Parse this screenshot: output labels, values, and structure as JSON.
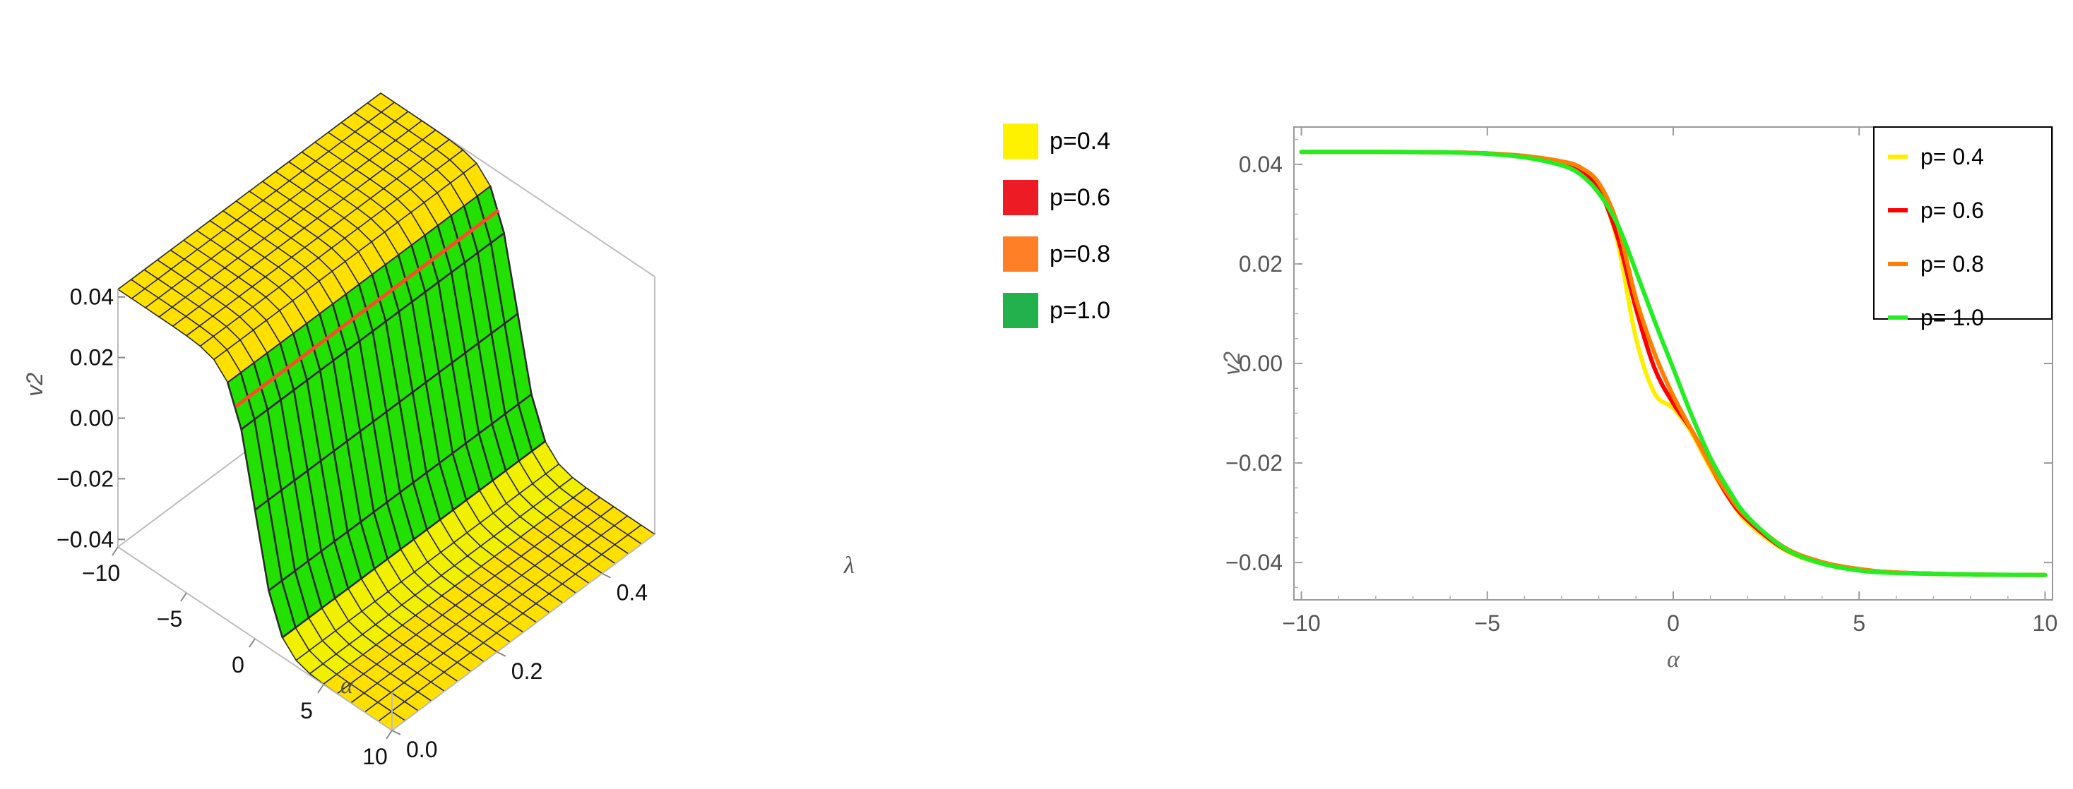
{
  "chart_data": [
    {
      "type": "surface3d",
      "zlabel": "v2",
      "xlabel": "α",
      "ylabel": "λ",
      "x_range": [
        -10,
        10
      ],
      "y_range": [
        0,
        0.5
      ],
      "z_range": [
        -0.0425,
        0.0425
      ],
      "z_ticks": [
        {
          "v": 0.04,
          "label": "0.04"
        },
        {
          "v": 0.02,
          "label": "0.02"
        },
        {
          "v": 0.0,
          "label": "0.00"
        },
        {
          "v": -0.02,
          "label": "−0.02"
        },
        {
          "v": -0.04,
          "label": "−0.04"
        }
      ],
      "x_ticks": [
        {
          "v": -10,
          "label": "−10"
        },
        {
          "v": -5,
          "label": "−5"
        },
        {
          "v": 0,
          "label": "0"
        },
        {
          "v": 5,
          "label": "5"
        },
        {
          "v": 10,
          "label": "10"
        }
      ],
      "y_ticks": [
        {
          "v": 0.0,
          "label": "0.0"
        },
        {
          "v": 0.2,
          "label": "0.2"
        },
        {
          "v": 0.4,
          "label": "0.4"
        }
      ],
      "surface": {
        "amplitude": 0.0425,
        "transition_width": 1.6
      },
      "legend": {
        "placement": "right",
        "entries": [
          {
            "label": "p=0.4",
            "color": "#FFF200"
          },
          {
            "label": "p=0.6",
            "color": "#ED1C24"
          },
          {
            "label": "p=0.8",
            "color": "#FF7F27"
          },
          {
            "label": "p=1.0",
            "color": "#22B14C"
          }
        ]
      },
      "colors": {
        "surface": "#FFE000",
        "transition": "#22E000",
        "mesh": "#2a2a2a"
      }
    },
    {
      "type": "line",
      "xlabel": "α",
      "ylabel": "v2",
      "xlim": [
        -10.2,
        10.2
      ],
      "ylim": [
        -0.0475,
        0.0475
      ],
      "x_ticks": [
        {
          "v": -10,
          "label": "−10"
        },
        {
          "v": -5,
          "label": "−5"
        },
        {
          "v": 0,
          "label": "0"
        },
        {
          "v": 5,
          "label": "5"
        },
        {
          "v": 10,
          "label": "10"
        }
      ],
      "y_ticks": [
        {
          "v": 0.04,
          "label": "0.04"
        },
        {
          "v": 0.02,
          "label": "0.02"
        },
        {
          "v": 0.0,
          "label": "0.00"
        },
        {
          "v": -0.02,
          "label": "−0.02"
        },
        {
          "v": -0.04,
          "label": "−0.04"
        }
      ],
      "legend_placement": "top-right",
      "x": [
        -10,
        -8,
        -6,
        -5,
        -4,
        -3,
        -2.5,
        -2,
        -1.5,
        -1,
        -0.5,
        0,
        0.5,
        1,
        1.5,
        2,
        3,
        4,
        5,
        6,
        8,
        10
      ],
      "series": [
        {
          "name": "p= 0.4",
          "color": "#FFEE00",
          "values": [
            0.0425,
            0.0425,
            0.0424,
            0.0422,
            0.0417,
            0.0405,
            0.0392,
            0.0355,
            0.0245,
            0.005,
            -0.006,
            -0.009,
            -0.014,
            -0.021,
            -0.027,
            -0.032,
            -0.0375,
            -0.0402,
            -0.0415,
            -0.0421,
            -0.0424,
            -0.0425
          ]
        },
        {
          "name": "p= 0.6",
          "color": "#FF0000",
          "values": [
            0.0425,
            0.0425,
            0.0424,
            0.0422,
            0.0416,
            0.0403,
            0.0388,
            0.035,
            0.0255,
            0.011,
            -0.001,
            -0.008,
            -0.0135,
            -0.0205,
            -0.027,
            -0.0315,
            -0.0373,
            -0.0401,
            -0.0414,
            -0.042,
            -0.0424,
            -0.0425
          ]
        },
        {
          "name": "p= 0.8",
          "color": "#FF8000",
          "values": [
            0.0425,
            0.0425,
            0.0424,
            0.0422,
            0.0417,
            0.0406,
            0.0394,
            0.0362,
            0.028,
            0.013,
            0.002,
            -0.0065,
            -0.0135,
            -0.0205,
            -0.0265,
            -0.031,
            -0.037,
            -0.0399,
            -0.0413,
            -0.042,
            -0.0424,
            -0.0425
          ]
        },
        {
          "name": "p= 1.0",
          "color": "#22EE22",
          "values": [
            0.0425,
            0.0425,
            0.0424,
            0.0421,
            0.0414,
            0.0398,
            0.038,
            0.0342,
            0.028,
            0.0185,
            0.0085,
            -0.001,
            -0.0105,
            -0.019,
            -0.0255,
            -0.0308,
            -0.0372,
            -0.0402,
            -0.0416,
            -0.0421,
            -0.0424,
            -0.0425
          ]
        }
      ]
    }
  ]
}
